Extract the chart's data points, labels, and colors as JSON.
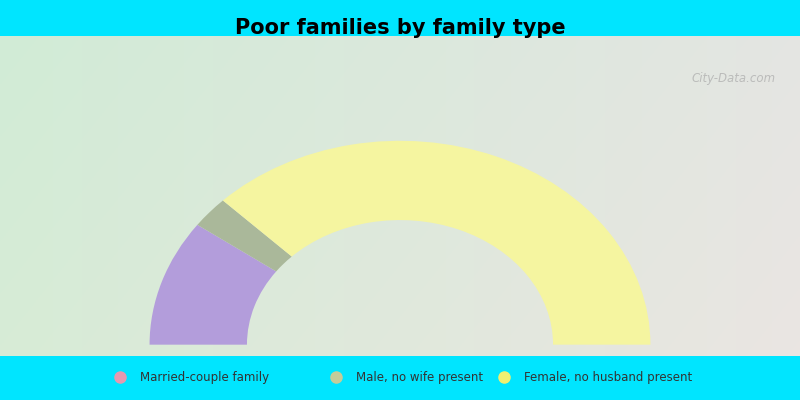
{
  "title": "Poor families by family type",
  "title_fontsize": 15,
  "background_color_outer": "#00e5ff",
  "segments": [
    {
      "label": "Married-couple family",
      "value": 20,
      "color": "#b39ddb"
    },
    {
      "label": "Male, no wife present",
      "value": 5,
      "color": "#aab89a"
    },
    {
      "label": "Female, no husband present",
      "value": 75,
      "color": "#f5f5a0"
    }
  ],
  "legend_colors": [
    "#e699b0",
    "#c5cc99",
    "#f0f070"
  ],
  "outer_r": 0.72,
  "inner_r": 0.44,
  "watermark": "City-Data.com"
}
